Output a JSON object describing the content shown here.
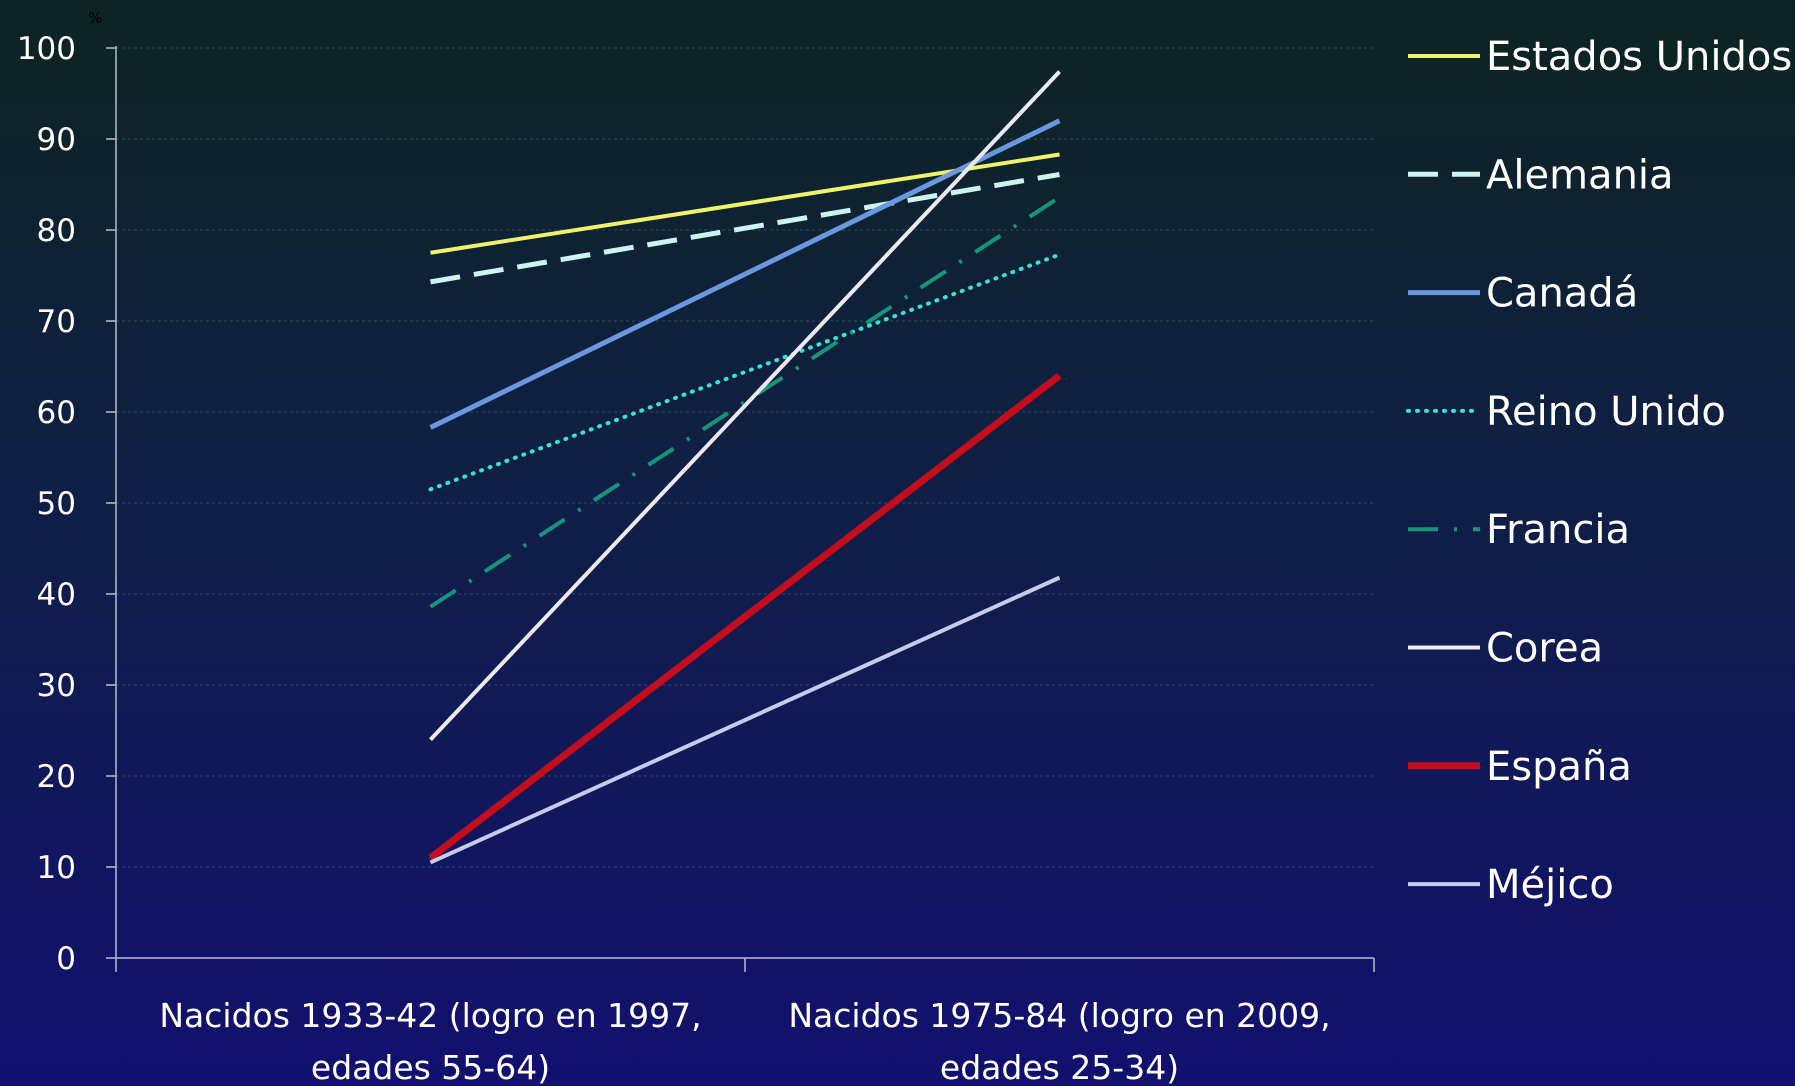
{
  "chart_data": {
    "type": "line",
    "unit": "%",
    "ylim": [
      0,
      100
    ],
    "yticks": [
      0,
      10,
      20,
      30,
      40,
      50,
      60,
      70,
      80,
      90,
      100
    ],
    "grid": true,
    "legend_position": "right",
    "categories": [
      [
        "Nacidos 1933-42 (logro en 1997,",
        "edades 55-64)"
      ],
      [
        "Nacidos 1975-84 (logro en 2009,",
        "edades 25-34)"
      ]
    ],
    "series": [
      {
        "name": "Estados Unidos",
        "values": [
          77.5,
          88.3
        ],
        "color": "#f2f26a",
        "dash": "solid",
        "width": 4
      },
      {
        "name": "Alemania",
        "values": [
          74.3,
          86.1
        ],
        "color": "#ccf5f2",
        "dash": "dashed",
        "width": 5
      },
      {
        "name": "Canadá",
        "values": [
          58.3,
          92.0
        ],
        "color": "#6a98e0",
        "dash": "solid",
        "width": 5
      },
      {
        "name": "Reino Unido",
        "values": [
          51.5,
          77.3
        ],
        "color": "#38e2d6",
        "dash": "dotted",
        "width": 4
      },
      {
        "name": "Francia",
        "values": [
          38.6,
          83.6
        ],
        "color": "#14967a",
        "dash": "dashdot",
        "width": 4
      },
      {
        "name": "Corea",
        "values": [
          24.0,
          97.4
        ],
        "color": "#ece8f4",
        "dash": "solid",
        "width": 4
      },
      {
        "name": "España",
        "values": [
          11.0,
          64.0
        ],
        "color": "#c30d1c",
        "dash": "solid",
        "width": 7
      },
      {
        "name": "Méjico",
        "values": [
          10.5,
          41.8
        ],
        "color": "#c6ccec",
        "dash": "solid",
        "width": 4
      }
    ]
  }
}
